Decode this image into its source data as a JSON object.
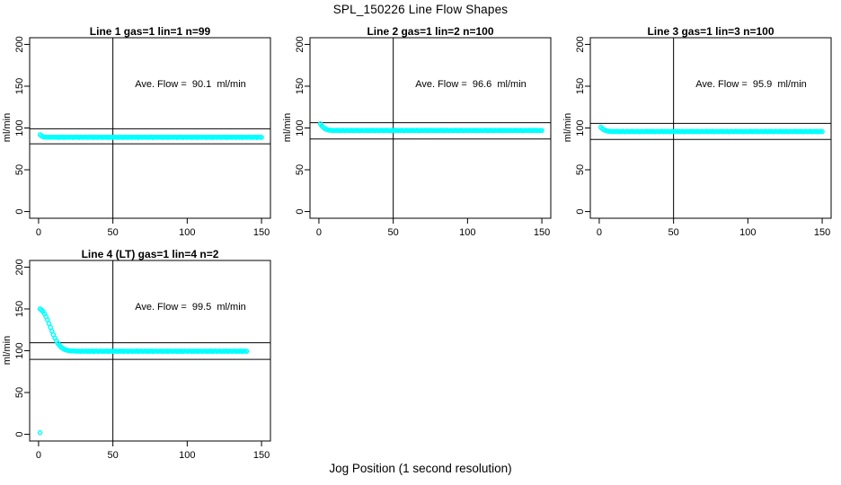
{
  "figure": {
    "main_title": "SPL_150226  Line Flow Shapes",
    "x_axis_label": "Jog Position (1 second resolution)",
    "y_axis_label": "ml/min",
    "background_color": "#FFFFFF",
    "axis_color": "#000000",
    "point_color": "#00FFFF"
  },
  "chart_data": [
    {
      "type": "scatter",
      "title": "Line 1 gas=1 lin=1 n=99",
      "annotation": "Ave. Flow =  90.1  ml/min",
      "ave_flow_ml_min": 90.1,
      "gas": 1,
      "lin": 1,
      "n": 99,
      "xlim": [
        0,
        150
      ],
      "ylim": [
        0,
        200
      ],
      "x_ticks": [
        0,
        50,
        100,
        150
      ],
      "y_ticks": [
        0,
        50,
        100,
        150,
        200
      ],
      "vline_x": 50,
      "hlines_y": [
        99.1,
        81.1
      ],
      "marker": "open-circle",
      "color": "#00FFFF",
      "x_start": 1,
      "x_step": 1,
      "y_values": [
        92.0,
        90.5,
        89.6,
        89.2,
        89.0,
        88.9,
        89.1,
        88.8,
        89.0,
        88.9,
        88.9,
        89.1,
        88.7,
        89.0,
        88.8,
        89.2,
        88.6,
        89.0,
        88.9,
        88.8,
        88.9,
        89.1,
        88.7,
        89.0,
        88.8,
        89.2,
        88.6,
        89.0,
        88.9,
        88.8,
        88.9,
        89.1,
        88.7,
        89.0,
        88.8,
        89.2,
        88.6,
        89.0,
        88.9,
        88.8,
        88.9,
        89.1,
        88.7,
        89.0,
        88.8,
        89.2,
        88.6,
        89.0,
        88.9,
        88.8,
        88.9,
        89.1,
        88.7,
        89.0,
        88.8,
        89.2,
        88.6,
        89.0,
        88.9,
        88.8,
        88.9,
        89.1,
        88.7,
        89.0,
        88.8,
        89.2,
        88.6,
        89.0,
        88.9,
        88.8,
        88.9,
        89.1,
        88.7,
        89.0,
        88.8,
        89.2,
        88.6,
        89.0,
        88.9,
        88.8,
        88.9,
        89.1,
        88.7,
        89.0,
        88.8,
        89.2,
        88.6,
        89.0,
        88.9,
        88.8,
        88.9,
        89.1,
        88.7,
        89.0,
        88.8,
        89.2,
        88.6,
        89.0,
        88.9,
        88.8,
        88.9,
        89.1,
        88.7,
        89.0,
        88.8,
        89.2,
        88.6,
        89.0,
        88.9,
        88.8,
        88.9,
        89.1,
        88.7,
        89.0,
        88.8,
        89.2,
        88.6,
        89.0,
        88.9,
        88.8,
        88.9,
        89.1,
        88.7,
        89.0,
        88.8,
        89.2,
        88.6,
        89.0,
        88.9,
        88.8,
        88.9,
        89.1,
        88.7,
        89.0,
        88.8,
        89.2,
        88.6,
        89.0,
        88.9,
        88.8,
        88.9,
        89.1,
        88.7,
        89.0,
        88.8,
        89.2,
        88.6,
        89.0,
        88.9,
        88.8
      ],
      "extra_points": []
    },
    {
      "type": "scatter",
      "title": "Line 2 gas=1 lin=2 n=100",
      "annotation": "Ave. Flow =  96.6  ml/min",
      "ave_flow_ml_min": 96.6,
      "gas": 1,
      "lin": 2,
      "n": 100,
      "xlim": [
        0,
        150
      ],
      "ylim": [
        0,
        200
      ],
      "x_ticks": [
        0,
        50,
        100,
        150
      ],
      "y_ticks": [
        0,
        50,
        100,
        150,
        200
      ],
      "vline_x": 50,
      "hlines_y": [
        106.3,
        86.9
      ],
      "marker": "open-circle",
      "color": "#00FFFF",
      "x_start": 1,
      "x_step": 1,
      "y_values": [
        105.0,
        102.4,
        100.6,
        99.3,
        98.4,
        97.8,
        97.4,
        97.2,
        97.1,
        97.0,
        97.0,
        97.2,
        96.8,
        97.1,
        96.9,
        97.3,
        96.7,
        97.0,
        97.1,
        96.9,
        97.0,
        97.2,
        96.8,
        97.1,
        96.9,
        97.3,
        96.7,
        97.0,
        97.1,
        96.9,
        97.0,
        97.2,
        96.8,
        97.1,
        96.9,
        97.3,
        96.7,
        97.0,
        97.1,
        96.9,
        97.0,
        97.2,
        96.8,
        97.1,
        96.9,
        97.3,
        96.7,
        97.0,
        97.1,
        96.9,
        97.0,
        97.2,
        96.8,
        97.1,
        96.9,
        97.3,
        96.7,
        97.0,
        97.1,
        96.9,
        97.0,
        97.2,
        96.8,
        97.1,
        96.9,
        97.3,
        96.7,
        97.0,
        97.1,
        96.9,
        97.0,
        97.2,
        96.8,
        97.1,
        96.9,
        97.3,
        96.7,
        97.0,
        97.1,
        96.9,
        97.0,
        97.2,
        96.8,
        97.1,
        96.9,
        97.3,
        96.7,
        97.0,
        97.1,
        96.9,
        97.0,
        97.2,
        96.8,
        97.1,
        96.9,
        97.3,
        96.7,
        97.0,
        97.1,
        96.9,
        97.0,
        97.2,
        96.8,
        97.1,
        96.9,
        97.3,
        96.7,
        97.0,
        97.1,
        96.9,
        97.0,
        97.2,
        96.8,
        97.1,
        96.9,
        97.3,
        96.7,
        97.0,
        97.1,
        96.9,
        97.0,
        97.2,
        96.8,
        97.1,
        96.9,
        97.3,
        96.7,
        97.0,
        97.1,
        96.9,
        97.0,
        97.2,
        96.8,
        97.1,
        96.9,
        97.3,
        96.7,
        97.0,
        97.1,
        96.9,
        97.0,
        97.2,
        96.8,
        97.1,
        96.9,
        97.3,
        96.7,
        97.0,
        97.1,
        96.9
      ],
      "extra_points": []
    },
    {
      "type": "scatter",
      "title": "Line 3 gas=1 lin=3 n=100",
      "annotation": "Ave. Flow =  95.9  ml/min",
      "ave_flow_ml_min": 95.9,
      "gas": 1,
      "lin": 3,
      "n": 100,
      "xlim": [
        0,
        150
      ],
      "ylim": [
        0,
        200
      ],
      "x_ticks": [
        0,
        50,
        100,
        150
      ],
      "y_ticks": [
        0,
        50,
        100,
        150,
        200
      ],
      "vline_x": 50,
      "hlines_y": [
        105.5,
        86.3
      ],
      "marker": "open-circle",
      "color": "#00FFFF",
      "x_start": 1,
      "x_step": 1,
      "y_values": [
        101.0,
        99.3,
        98.1,
        97.2,
        96.6,
        96.2,
        96.0,
        95.9,
        95.8,
        95.8,
        95.8,
        96.0,
        95.6,
        95.9,
        95.7,
        96.1,
        95.5,
        95.8,
        95.9,
        95.7,
        95.8,
        96.0,
        95.6,
        95.9,
        95.7,
        96.1,
        95.5,
        95.8,
        95.9,
        95.7,
        95.8,
        96.0,
        95.6,
        95.9,
        95.7,
        96.1,
        95.5,
        95.8,
        95.9,
        95.7,
        95.8,
        96.0,
        95.6,
        95.9,
        95.7,
        96.1,
        95.5,
        95.8,
        95.9,
        95.7,
        95.8,
        96.0,
        95.6,
        95.9,
        95.7,
        96.1,
        95.5,
        95.8,
        95.9,
        95.7,
        95.8,
        96.0,
        95.6,
        95.9,
        95.7,
        96.1,
        95.5,
        95.8,
        95.9,
        95.7,
        95.8,
        96.0,
        95.6,
        95.9,
        95.7,
        96.1,
        95.5,
        95.8,
        95.9,
        95.7,
        95.8,
        96.0,
        95.6,
        95.9,
        95.7,
        96.1,
        95.5,
        95.8,
        95.9,
        95.7,
        95.8,
        96.0,
        95.6,
        95.9,
        95.7,
        96.1,
        95.5,
        95.8,
        95.9,
        95.7,
        95.8,
        96.0,
        95.6,
        95.9,
        95.7,
        96.1,
        95.5,
        95.8,
        95.9,
        95.7,
        95.8,
        96.0,
        95.6,
        95.9,
        95.7,
        96.1,
        95.5,
        95.8,
        95.9,
        95.7,
        95.8,
        96.0,
        95.6,
        95.9,
        95.7,
        96.1,
        95.5,
        95.8,
        95.9,
        95.7,
        95.8,
        96.0,
        95.6,
        95.9,
        95.7,
        96.1,
        95.5,
        95.8,
        95.9,
        95.7,
        95.8,
        96.0,
        95.6,
        95.9,
        95.7,
        96.1,
        95.5,
        95.8,
        95.9,
        95.7
      ],
      "extra_points": []
    },
    {
      "type": "scatter",
      "title": "Line 4 (LT) gas=1 lin=4 n=2",
      "annotation": "Ave. Flow =  99.5  ml/min",
      "ave_flow_ml_min": 99.5,
      "gas": 1,
      "lin": 4,
      "n": 2,
      "xlim": [
        0,
        150
      ],
      "ylim": [
        0,
        200
      ],
      "x_ticks": [
        0,
        50,
        100,
        150
      ],
      "y_ticks": [
        0,
        50,
        100,
        150,
        200
      ],
      "vline_x": 50,
      "hlines_y": [
        109.5,
        89.6
      ],
      "marker": "open-circle",
      "color": "#00FFFF",
      "x_start": 1,
      "x_step": 1,
      "y_values": [
        150.0,
        148.8,
        146.9,
        144.2,
        140.9,
        136.9,
        132.5,
        127.9,
        123.4,
        119.1,
        115.2,
        111.8,
        108.9,
        106.5,
        104.6,
        103.1,
        102.0,
        101.2,
        100.6,
        100.2,
        100.0,
        99.8,
        99.7,
        99.6,
        99.5,
        99.4,
        99.6,
        99.3,
        99.5,
        99.4,
        99.4,
        99.7,
        99.2,
        99.5,
        99.3,
        99.8,
        99.1,
        99.5,
        99.6,
        99.3,
        99.4,
        99.7,
        99.2,
        99.5,
        99.3,
        99.8,
        99.1,
        99.5,
        99.6,
        99.3,
        99.4,
        99.7,
        99.2,
        99.5,
        99.3,
        99.8,
        99.1,
        99.5,
        99.6,
        99.3,
        99.4,
        99.7,
        99.2,
        99.5,
        99.3,
        99.8,
        99.1,
        99.5,
        99.6,
        99.3,
        99.4,
        99.7,
        99.2,
        99.5,
        99.3,
        99.8,
        99.1,
        99.5,
        99.6,
        99.3,
        99.4,
        99.7,
        99.2,
        99.5,
        99.3,
        99.8,
        99.1,
        99.5,
        99.6,
        99.3,
        99.4,
        99.7,
        99.2,
        99.5,
        99.3,
        99.8,
        99.1,
        99.5,
        99.6,
        99.3,
        99.4,
        99.7,
        99.2,
        99.5,
        99.3,
        99.8,
        99.1,
        99.5,
        99.6,
        99.3,
        99.4,
        99.7,
        99.2,
        99.5,
        99.3,
        99.8,
        99.1,
        99.5,
        99.6,
        99.3,
        99.4,
        99.7,
        99.2,
        99.5,
        99.3,
        99.8,
        99.1,
        99.5,
        99.6,
        99.3,
        99.4,
        99.7,
        99.2,
        99.5,
        99.3,
        99.8,
        99.1,
        99.5,
        99.6,
        99.3
      ],
      "extra_points": [
        [
          1,
          2.0
        ]
      ]
    }
  ]
}
